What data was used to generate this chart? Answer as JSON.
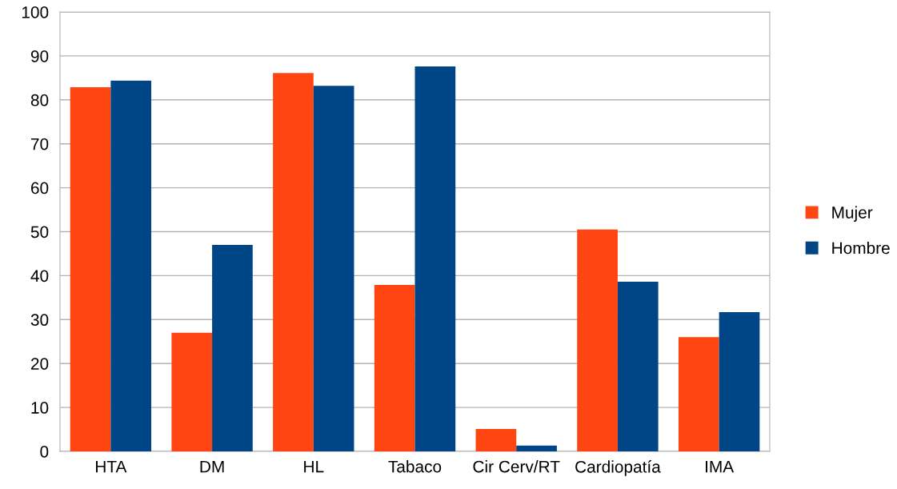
{
  "chart_data": {
    "type": "bar",
    "categories": [
      "HTA",
      "DM",
      "HL",
      "Tabaco",
      "Cir Cerv/RT",
      "Cardiopatía",
      "IMA"
    ],
    "series": [
      {
        "name": "Mujer",
        "color": "#ff4612",
        "values": [
          82.9,
          27.0,
          86.1,
          37.9,
          5.1,
          50.5,
          26.0
        ]
      },
      {
        "name": "Hombre",
        "color": "#004586",
        "values": [
          84.4,
          47.0,
          83.2,
          87.6,
          1.3,
          38.6,
          31.7
        ]
      }
    ],
    "ylim": [
      0,
      100
    ],
    "yticks": [
      0,
      10,
      20,
      30,
      40,
      50,
      60,
      70,
      80,
      90,
      100
    ],
    "grid": "y",
    "legend": "right"
  }
}
